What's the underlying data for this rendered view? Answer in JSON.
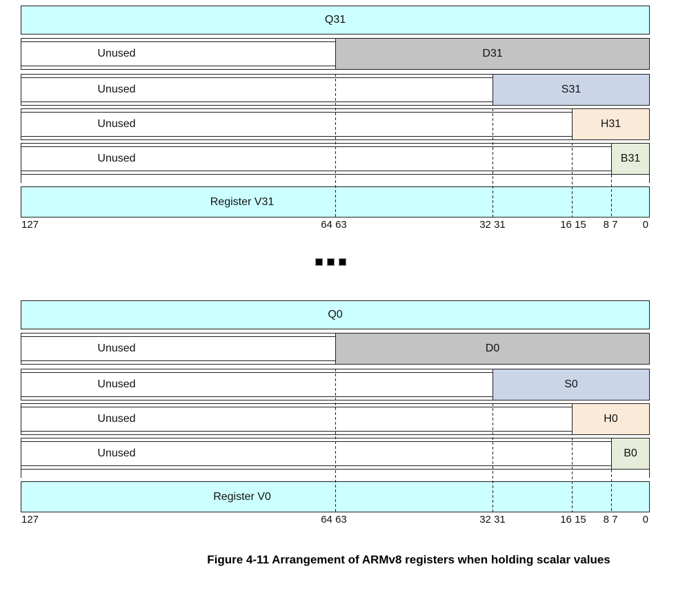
{
  "caption": "Figure 4-11 Arrangement of ARMv8 registers when holding scalar values",
  "colors": {
    "q_fill": "#ccffff",
    "d_fill": "#c3c3c3",
    "s_fill": "#cbd5e8",
    "h_fill": "#fcead9",
    "b_fill": "#e6edda",
    "v_fill": "#ccffff",
    "border": "#1f1f1f"
  },
  "bit_ruler": [
    "127",
    "64 63",
    "32 31",
    "16 15",
    "8 7",
    "0"
  ],
  "groups": [
    {
      "q_label": "Q31",
      "register_label": "Register V31",
      "scalar_rows": [
        {
          "unused": "Unused",
          "label": "D31"
        },
        {
          "unused": "Unused",
          "label": "S31"
        },
        {
          "unused": "Unused",
          "label": "H31"
        },
        {
          "unused": "Unused",
          "label": "B31"
        }
      ]
    },
    {
      "q_label": "Q0",
      "register_label": "Register V0",
      "scalar_rows": [
        {
          "unused": "Unused",
          "label": "D0"
        },
        {
          "unused": "Unused",
          "label": "S0"
        },
        {
          "unused": "Unused",
          "label": "H0"
        },
        {
          "unused": "Unused",
          "label": "B0"
        }
      ]
    }
  ]
}
